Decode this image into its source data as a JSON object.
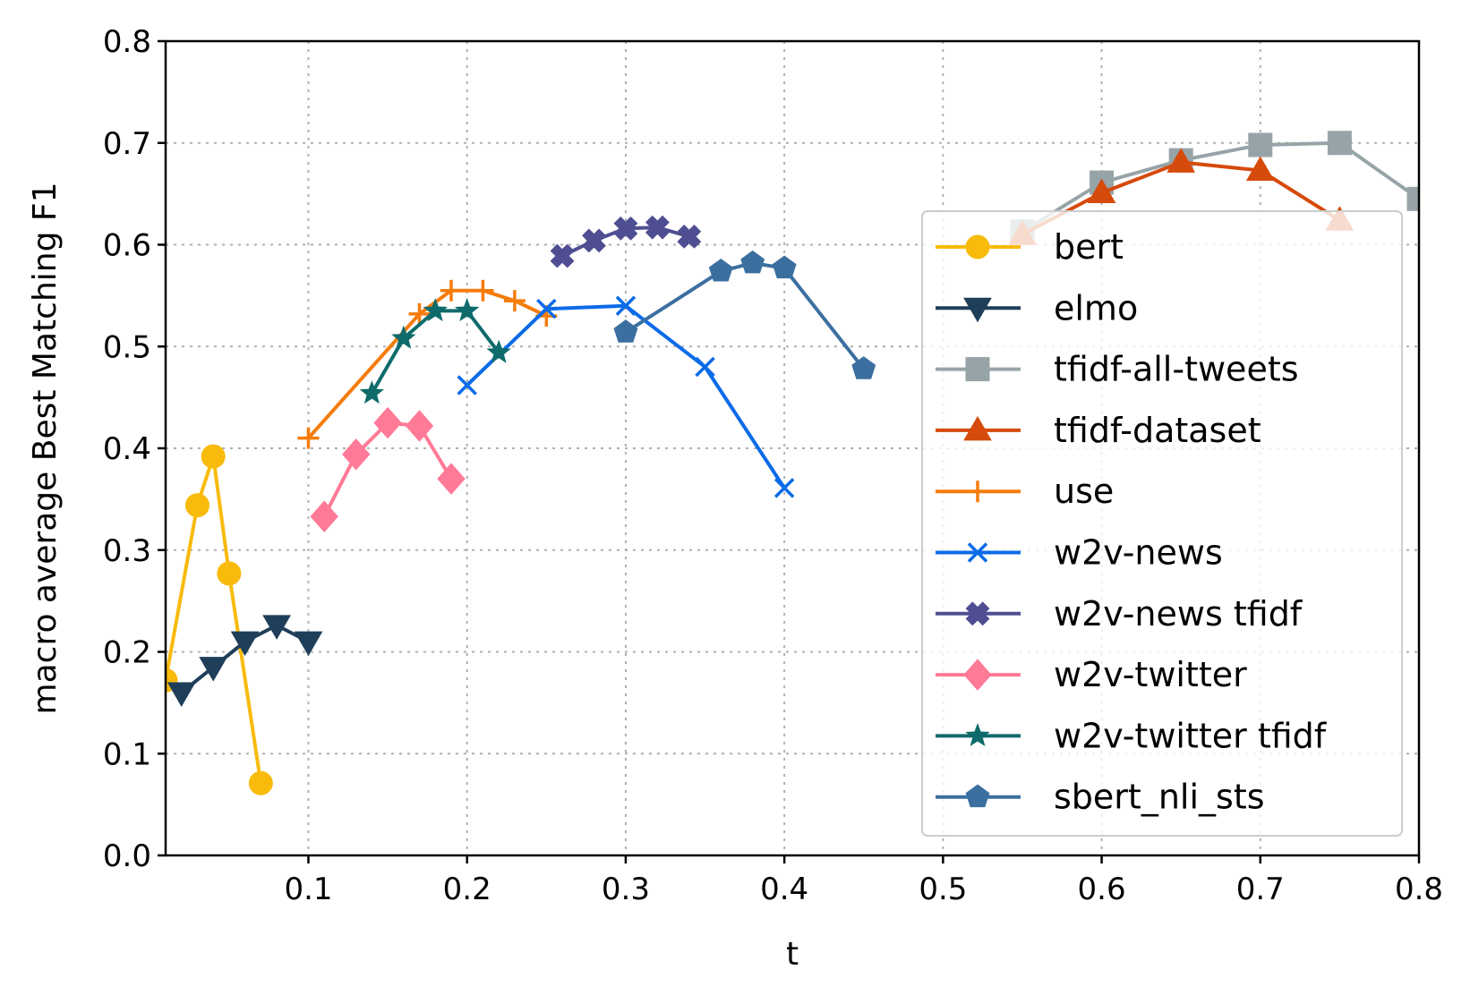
{
  "chart_data": {
    "type": "line",
    "xlabel": "t",
    "ylabel": "macro average Best Matching F1",
    "xlim": [
      0.01,
      0.8
    ],
    "ylim": [
      0.0,
      0.8
    ],
    "xticks": [
      "0.1",
      "0.2",
      "0.3",
      "0.4",
      "0.5",
      "0.6",
      "0.7",
      "0.8"
    ],
    "yticks": [
      "0.0",
      "0.1",
      "0.2",
      "0.3",
      "0.4",
      "0.5",
      "0.6",
      "0.7",
      "0.8"
    ],
    "grid": true,
    "legend_position": "center-right",
    "series": [
      {
        "name": "bert",
        "color": "#f8bb0c",
        "marker": "circle",
        "x": [
          0.01,
          0.03,
          0.04,
          0.05,
          0.07
        ],
        "y": [
          0.172,
          0.344,
          0.392,
          0.277,
          0.071
        ]
      },
      {
        "name": "elmo",
        "color": "#1f3e5a",
        "marker": "triangle-down",
        "x": [
          0.02,
          0.04,
          0.06,
          0.08,
          0.1
        ],
        "y": [
          0.16,
          0.185,
          0.21,
          0.226,
          0.21
        ]
      },
      {
        "name": "tfidf-all-tweets",
        "color": "#97a4a7",
        "marker": "square",
        "x": [
          0.55,
          0.6,
          0.65,
          0.7,
          0.75,
          0.8
        ],
        "y": [
          0.613,
          0.661,
          0.683,
          0.698,
          0.7,
          0.645
        ]
      },
      {
        "name": "tfidf-dataset",
        "color": "#d64a0b",
        "marker": "triangle-up",
        "x": [
          0.55,
          0.6,
          0.65,
          0.7,
          0.75
        ],
        "y": [
          0.61,
          0.651,
          0.681,
          0.673,
          0.624
        ]
      },
      {
        "name": "use",
        "color": "#f57c0c",
        "marker": "plus",
        "x": [
          0.1,
          0.17,
          0.19,
          0.21,
          0.23,
          0.25
        ],
        "y": [
          0.41,
          0.532,
          0.555,
          0.555,
          0.545,
          0.53
        ]
      },
      {
        "name": "w2v-news",
        "color": "#0b6be8",
        "marker": "x",
        "x": [
          0.2,
          0.25,
          0.3,
          0.35,
          0.4
        ],
        "y": [
          0.462,
          0.537,
          0.54,
          0.48,
          0.361
        ]
      },
      {
        "name": "w2v-news tfidf",
        "color": "#4f4e92",
        "marker": "plus-filled",
        "x": [
          0.26,
          0.28,
          0.3,
          0.32,
          0.34
        ],
        "y": [
          0.589,
          0.604,
          0.616,
          0.617,
          0.608
        ]
      },
      {
        "name": "w2v-twitter",
        "color": "#ff7a96",
        "marker": "diamond",
        "x": [
          0.11,
          0.13,
          0.15,
          0.17,
          0.19
        ],
        "y": [
          0.333,
          0.394,
          0.425,
          0.422,
          0.37
        ]
      },
      {
        "name": "w2v-twitter tfidf",
        "color": "#0f6b6b",
        "marker": "star",
        "x": [
          0.14,
          0.16,
          0.18,
          0.2,
          0.22
        ],
        "y": [
          0.454,
          0.508,
          0.535,
          0.535,
          0.494
        ]
      },
      {
        "name": "sbert_nli_sts",
        "color": "#3b6fa0",
        "marker": "pentagon",
        "x": [
          0.3,
          0.36,
          0.38,
          0.4,
          0.45
        ],
        "y": [
          0.514,
          0.574,
          0.582,
          0.577,
          0.478
        ]
      }
    ]
  }
}
